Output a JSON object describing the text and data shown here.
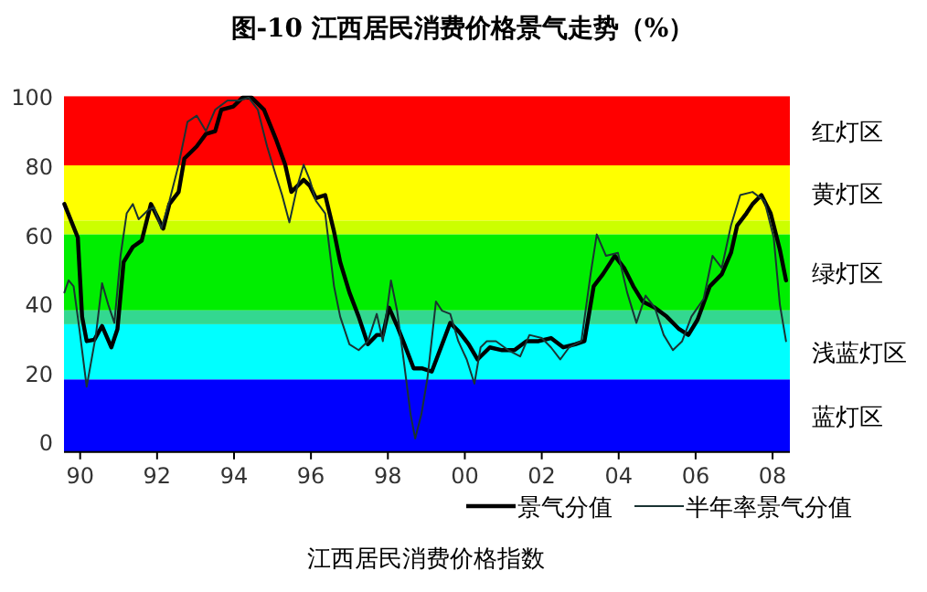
{
  "chart_data": {
    "type": "line",
    "title": "图-10 江西居民消费价格景气走势（%）",
    "annotations": [
      "江西居民消费价格指数"
    ],
    "legend": "bottom",
    "xlim": [
      1989.58,
      2008.45
    ],
    "ylim": [
      -3,
      100
    ],
    "xticks": [
      {
        "value": 1990,
        "label": "90"
      },
      {
        "value": 1992,
        "label": "92"
      },
      {
        "value": 1994,
        "label": "94"
      },
      {
        "value": 1996,
        "label": "96"
      },
      {
        "value": 1998,
        "label": "98"
      },
      {
        "value": 2000,
        "label": "00"
      },
      {
        "value": 2002,
        "label": "02"
      },
      {
        "value": 2004,
        "label": "04"
      },
      {
        "value": 2006,
        "label": "06"
      },
      {
        "value": 2008,
        "label": "08"
      }
    ],
    "yticks": [
      0,
      20,
      40,
      60,
      80,
      100
    ],
    "bands": [
      {
        "axis": "y",
        "from": 80,
        "to": 100,
        "label": "红灯区",
        "color": "#ff0000"
      },
      {
        "axis": "y",
        "from": 64,
        "to": 80,
        "label": "黄灯区",
        "color": "#ffff00"
      },
      {
        "axis": "y",
        "from": 60,
        "to": 64,
        "color": "#ccff00"
      },
      {
        "axis": "y",
        "from": 38,
        "to": 60,
        "label": "绿灯区",
        "color": "#00ee00"
      },
      {
        "axis": "y",
        "from": 34,
        "to": 38,
        "color": "#33d890"
      },
      {
        "axis": "y",
        "from": 18,
        "to": 34,
        "label": "浅蓝灯区",
        "color": "#00ffff"
      },
      {
        "axis": "y",
        "from": -3,
        "to": 18,
        "label": "蓝灯区",
        "color": "#0000ff"
      }
    ],
    "series": [
      {
        "name": "景气分值",
        "color": "#000000",
        "x": [
          1989.59,
          1989.94,
          1990.05,
          1990.17,
          1990.37,
          1990.57,
          1990.81,
          1990.97,
          1991.13,
          1991.37,
          1991.6,
          1991.84,
          1992.16,
          1992.32,
          1992.56,
          1992.71,
          1993.03,
          1993.27,
          1993.51,
          1993.67,
          1993.98,
          1994.22,
          1994.46,
          1994.78,
          1995.1,
          1995.33,
          1995.49,
          1995.81,
          1995.97,
          1996.13,
          1996.37,
          1996.6,
          1996.76,
          1997.0,
          1997.24,
          1997.48,
          1997.71,
          1997.87,
          1998.03,
          1998.24,
          1998.43,
          1998.67,
          1998.9,
          1999.14,
          1999.38,
          1999.62,
          1999.86,
          2000.1,
          2000.33,
          2000.65,
          2000.97,
          2001.29,
          2001.6,
          2001.92,
          2002.24,
          2002.56,
          2002.87,
          2003.11,
          2003.35,
          2003.59,
          2003.9,
          2004.14,
          2004.38,
          2004.62,
          2004.94,
          2005.25,
          2005.57,
          2005.81,
          2006.05,
          2006.37,
          2006.68,
          2006.92,
          2007.08,
          2007.32,
          2007.48,
          2007.71,
          2007.95,
          2008.19,
          2008.35
        ],
        "values": [
          68.8,
          59.1,
          36.2,
          29.1,
          29.5,
          33.5,
          27.3,
          32.6,
          52.0,
          56.4,
          58.2,
          68.8,
          61.7,
          68.8,
          72.3,
          82.0,
          85.5,
          89.1,
          89.9,
          96.1,
          97.0,
          99.6,
          99.6,
          96.1,
          87.3,
          80.2,
          72.3,
          75.8,
          74.1,
          70.5,
          71.4,
          60.8,
          52.0,
          43.2,
          36.2,
          28.2,
          30.9,
          30.9,
          38.8,
          33.5,
          28.2,
          21.2,
          21.2,
          20.3,
          27.3,
          34.4,
          31.7,
          28.2,
          23.8,
          27.3,
          26.5,
          26.5,
          29.1,
          29.1,
          30.0,
          27.3,
          28.2,
          29.1,
          45.0,
          48.5,
          53.8,
          50.3,
          45.0,
          40.6,
          38.8,
          36.2,
          32.6,
          30.9,
          35.3,
          45.0,
          48.5,
          54.7,
          62.6,
          66.1,
          68.8,
          71.4,
          66.1,
          55.6,
          46.7
        ]
      },
      {
        "name": "半年率景气分值",
        "color": "#1a3333",
        "x": [
          1989.59,
          1989.7,
          1989.83,
          1989.98,
          1990.17,
          1990.41,
          1990.57,
          1990.73,
          1990.89,
          1991.05,
          1991.21,
          1991.37,
          1991.52,
          1991.76,
          1991.92,
          1992.11,
          1992.32,
          1992.56,
          1992.79,
          1993.03,
          1993.27,
          1993.51,
          1993.83,
          1994.14,
          1994.38,
          1994.62,
          1994.86,
          1995.1,
          1995.25,
          1995.44,
          1995.65,
          1995.81,
          1995.97,
          1996.13,
          1996.37,
          1996.6,
          1996.76,
          1997.0,
          1997.24,
          1997.48,
          1997.71,
          1997.87,
          1998.08,
          1998.24,
          1998.43,
          1998.59,
          1998.71,
          1998.87,
          1999.03,
          1999.25,
          1999.41,
          1999.62,
          1999.83,
          2000.05,
          2000.25,
          2000.41,
          2000.57,
          2000.81,
          2001.13,
          2001.44,
          2001.68,
          2002.0,
          2002.24,
          2002.48,
          2002.71,
          2003.03,
          2003.27,
          2003.43,
          2003.67,
          2003.98,
          2004.22,
          2004.46,
          2004.7,
          2004.94,
          2005.17,
          2005.41,
          2005.65,
          2005.89,
          2006.21,
          2006.44,
          2006.68,
          2006.92,
          2007.16,
          2007.48,
          2007.79,
          2008.03,
          2008.19,
          2008.35
        ],
        "values": [
          43.2,
          46.7,
          45.0,
          32.6,
          15.9,
          30.9,
          45.9,
          39.7,
          34.4,
          53.8,
          66.1,
          68.8,
          64.4,
          67.0,
          67.9,
          61.7,
          69.7,
          80.2,
          92.6,
          94.4,
          89.9,
          96.1,
          98.8,
          98.8,
          99.6,
          96.1,
          85.5,
          76.7,
          71.4,
          63.5,
          74.1,
          80.2,
          75.8,
          69.7,
          66.1,
          45.0,
          36.2,
          28.2,
          26.5,
          29.1,
          37.0,
          29.1,
          46.7,
          37.9,
          22.0,
          7.9,
          0.9,
          7.9,
          18.5,
          40.6,
          37.9,
          37.0,
          29.1,
          23.8,
          16.8,
          27.3,
          29.1,
          29.1,
          26.5,
          24.7,
          30.9,
          30.0,
          27.3,
          23.8,
          27.3,
          29.1,
          48.5,
          60.0,
          53.8,
          54.7,
          43.2,
          34.4,
          42.3,
          38.8,
          30.9,
          26.5,
          29.1,
          36.2,
          41.4,
          53.8,
          50.3,
          62.6,
          71.4,
          72.3,
          69.7,
          59.1,
          39.7,
          29.1
        ]
      }
    ]
  }
}
